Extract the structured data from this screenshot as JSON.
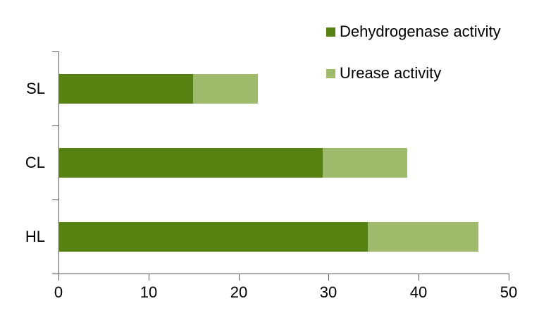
{
  "chart_data": {
    "type": "bar",
    "orientation": "horizontal",
    "stacked": true,
    "title": "",
    "xlabel": "",
    "ylabel": "",
    "categories": [
      "SL",
      "CL",
      "HL"
    ],
    "series": [
      {
        "name": "Dehydrogenase activity",
        "color": "#578211",
        "values": [
          14.9,
          29.3,
          34.3
        ]
      },
      {
        "name": "Urease activity",
        "color": "#9EBB6B",
        "values": [
          7.2,
          9.4,
          12.3
        ]
      }
    ],
    "totals": [
      22.1,
      38.7,
      46.6
    ],
    "xlim": [
      0,
      50
    ],
    "xticks": [
      "0",
      "10",
      "20",
      "30",
      "40",
      "50"
    ],
    "grid": false,
    "legend_position": "top-right"
  },
  "colors": {
    "axis": "#595959",
    "text": "#000000",
    "background": "#FFFFFF",
    "dehydrogenase": "#578211",
    "urease": "#9EBB6B"
  }
}
